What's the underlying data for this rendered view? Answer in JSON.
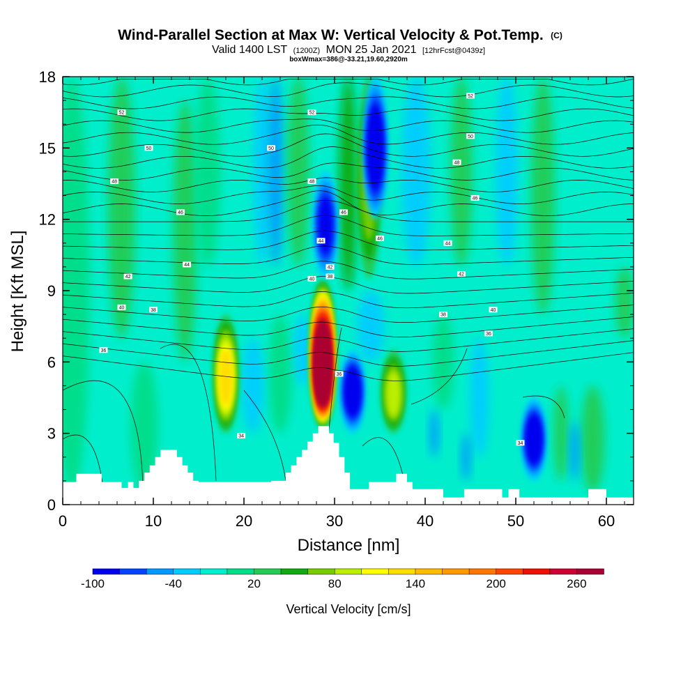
{
  "title": {
    "main": "Wind-Parallel Section at Max W: Vertical Velocity & Pot.Temp.",
    "main_suffix": "(C)",
    "valid_prefix": "Valid 1400 LST",
    "valid_utc": "(1200Z)",
    "valid_date": "MON 25 Jan 2021",
    "valid_fcst": "[12hrFcst@0439z]",
    "boxw": "boxWmax=386@-33.21,19.60,2920m"
  },
  "chart_data": {
    "type": "heatmap",
    "title": "Wind-Parallel Section at Max W: Vertical Velocity & Pot.Temp.",
    "xlabel": "Distance [nm]",
    "ylabel": "Height [Kft MSL]",
    "xlim": [
      0,
      63
    ],
    "ylim": [
      0,
      18
    ],
    "xticks": [
      0,
      10,
      20,
      30,
      40,
      50,
      60
    ],
    "yticks": [
      0,
      3,
      6,
      9,
      12,
      15,
      18
    ],
    "colorbar": {
      "label": "Vertical Velocity [cm/s]",
      "levels": [
        -100,
        -80,
        -60,
        -40,
        -20,
        0,
        20,
        40,
        60,
        80,
        100,
        120,
        140,
        160,
        180,
        200,
        220,
        240,
        260,
        280
      ],
      "tick_labels": [
        "-100",
        "-40",
        "20",
        "80",
        "140",
        "200",
        "260"
      ],
      "colors": [
        "#0000ee",
        "#0044ff",
        "#0099ff",
        "#00ccff",
        "#00eecc",
        "#00dd88",
        "#22cc55",
        "#11aa11",
        "#77cc00",
        "#bbee00",
        "#ffff00",
        "#ffdd00",
        "#ffbb00",
        "#ff9900",
        "#ff7700",
        "#ff4400",
        "#ee1100",
        "#cc0033",
        "#aa0033"
      ]
    },
    "updrafts": [
      {
        "x": 18.0,
        "y_low": 3.0,
        "y_high": 8.0,
        "w_max": 120
      },
      {
        "x": 28.7,
        "y_low": 3.2,
        "y_high": 9.5,
        "w_max": 386
      },
      {
        "x": 36.5,
        "y_low": 3.0,
        "y_high": 6.5,
        "w_max": 80
      },
      {
        "x": 33.8,
        "y_low": 9.5,
        "y_high": 18.0,
        "w_max": 60
      }
    ],
    "downdrafts": [
      {
        "x": 32.0,
        "y_low": 3.0,
        "y_high": 6.5,
        "w_min": -100
      },
      {
        "x": 34.5,
        "y_low": 12.0,
        "y_high": 18.0,
        "w_min": -100
      },
      {
        "x": 29.0,
        "y_low": 9.5,
        "y_high": 14.0,
        "w_min": -80
      },
      {
        "x": 52.0,
        "y_low": 1.0,
        "y_high": 4.5,
        "w_min": -100
      }
    ],
    "theta_labels": [
      "52",
      "52",
      "52",
      "50",
      "50",
      "50",
      "48",
      "48",
      "48",
      "46",
      "46",
      "46",
      "46",
      "44",
      "44",
      "44",
      "42",
      "42",
      "42",
      "40",
      "40",
      "40",
      "38",
      "38",
      "38",
      "36",
      "36",
      "36",
      "34",
      "34"
    ],
    "terrain_kft": [
      {
        "x": 0.0,
        "h": 0.95
      },
      {
        "x": 1.5,
        "h": 0.95
      },
      {
        "x": 1.5,
        "h": 1.3
      },
      {
        "x": 4.3,
        "h": 1.3
      },
      {
        "x": 4.3,
        "h": 0.95
      },
      {
        "x": 6.5,
        "h": 0.95
      },
      {
        "x": 6.5,
        "h": 0.7
      },
      {
        "x": 7.2,
        "h": 0.7
      },
      {
        "x": 7.2,
        "h": 0.95
      },
      {
        "x": 7.8,
        "h": 0.95
      },
      {
        "x": 7.8,
        "h": 0.7
      },
      {
        "x": 8.4,
        "h": 0.7
      },
      {
        "x": 8.4,
        "h": 1.0
      },
      {
        "x": 9.0,
        "h": 1.0
      },
      {
        "x": 9.0,
        "h": 1.35
      },
      {
        "x": 9.6,
        "h": 1.35
      },
      {
        "x": 9.6,
        "h": 1.65
      },
      {
        "x": 10.2,
        "h": 1.65
      },
      {
        "x": 10.2,
        "h": 2.0
      },
      {
        "x": 10.8,
        "h": 2.0
      },
      {
        "x": 10.8,
        "h": 2.3
      },
      {
        "x": 12.6,
        "h": 2.3
      },
      {
        "x": 12.6,
        "h": 2.0
      },
      {
        "x": 13.2,
        "h": 2.0
      },
      {
        "x": 13.2,
        "h": 1.65
      },
      {
        "x": 13.8,
        "h": 1.65
      },
      {
        "x": 13.8,
        "h": 1.35
      },
      {
        "x": 14.4,
        "h": 1.35
      },
      {
        "x": 14.4,
        "h": 1.0
      },
      {
        "x": 15.0,
        "h": 1.0
      },
      {
        "x": 15.0,
        "h": 0.95
      },
      {
        "x": 23.0,
        "h": 0.95
      },
      {
        "x": 23.0,
        "h": 1.0
      },
      {
        "x": 24.6,
        "h": 1.0
      },
      {
        "x": 24.6,
        "h": 1.35
      },
      {
        "x": 25.2,
        "h": 1.35
      },
      {
        "x": 25.2,
        "h": 1.65
      },
      {
        "x": 25.8,
        "h": 1.65
      },
      {
        "x": 25.8,
        "h": 2.0
      },
      {
        "x": 26.4,
        "h": 2.0
      },
      {
        "x": 26.4,
        "h": 2.3
      },
      {
        "x": 27.0,
        "h": 2.3
      },
      {
        "x": 27.0,
        "h": 2.65
      },
      {
        "x": 27.6,
        "h": 2.65
      },
      {
        "x": 27.6,
        "h": 3.0
      },
      {
        "x": 28.2,
        "h": 3.0
      },
      {
        "x": 28.2,
        "h": 3.3
      },
      {
        "x": 29.4,
        "h": 3.3
      },
      {
        "x": 29.4,
        "h": 3.0
      },
      {
        "x": 29.9,
        "h": 3.0
      },
      {
        "x": 29.9,
        "h": 2.6
      },
      {
        "x": 30.5,
        "h": 2.6
      },
      {
        "x": 30.5,
        "h": 2.0
      },
      {
        "x": 31.1,
        "h": 2.0
      },
      {
        "x": 31.1,
        "h": 1.35
      },
      {
        "x": 31.7,
        "h": 1.35
      },
      {
        "x": 31.7,
        "h": 0.65
      },
      {
        "x": 33.8,
        "h": 0.65
      },
      {
        "x": 33.8,
        "h": 0.95
      },
      {
        "x": 36.8,
        "h": 0.95
      },
      {
        "x": 36.8,
        "h": 1.3
      },
      {
        "x": 38.0,
        "h": 1.3
      },
      {
        "x": 38.0,
        "h": 0.95
      },
      {
        "x": 38.6,
        "h": 0.95
      },
      {
        "x": 38.6,
        "h": 0.65
      },
      {
        "x": 42.0,
        "h": 0.65
      },
      {
        "x": 42.0,
        "h": 0.3
      },
      {
        "x": 44.3,
        "h": 0.3
      },
      {
        "x": 44.3,
        "h": 0.65
      },
      {
        "x": 48.5,
        "h": 0.65
      },
      {
        "x": 48.5,
        "h": 0.3
      },
      {
        "x": 49.2,
        "h": 0.3
      },
      {
        "x": 49.2,
        "h": 0.65
      },
      {
        "x": 50.4,
        "h": 0.65
      },
      {
        "x": 50.4,
        "h": 0.3
      },
      {
        "x": 58.0,
        "h": 0.3
      },
      {
        "x": 58.0,
        "h": 0.65
      },
      {
        "x": 60.0,
        "h": 0.65
      },
      {
        "x": 60.0,
        "h": 0.3
      },
      {
        "x": 63.0,
        "h": 0.3
      }
    ]
  }
}
